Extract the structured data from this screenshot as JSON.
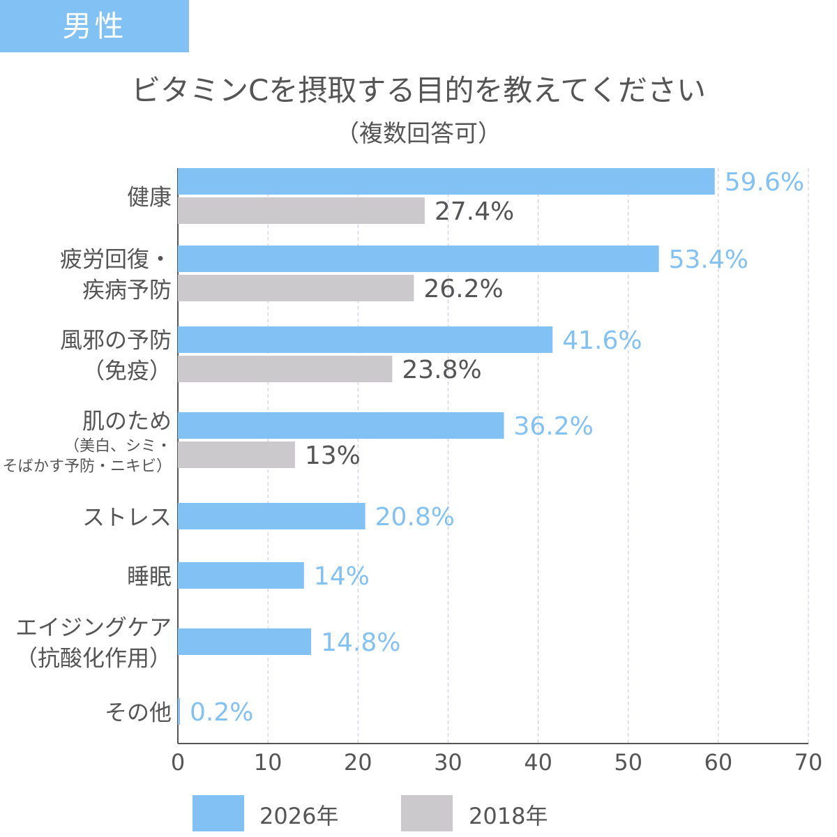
{
  "header": {
    "badge": "男性"
  },
  "chart_data": {
    "type": "bar",
    "orientation": "horizontal",
    "title": "ビタミンCを摂取する目的を教えてください",
    "subtitle": "（複数回答可）",
    "xlabel": "",
    "ylabel": "",
    "xlim": [
      0,
      70
    ],
    "x_ticks": [
      0,
      10,
      20,
      30,
      40,
      50,
      60,
      70
    ],
    "grid": "vertical dashed",
    "legend_position": "bottom",
    "categories": [
      {
        "lines": [
          "健康"
        ],
        "sublines": []
      },
      {
        "lines": [
          "疲労回復・",
          "疾病予防"
        ],
        "sublines": []
      },
      {
        "lines": [
          "風邪の予防",
          "（免疫）"
        ],
        "sublines": []
      },
      {
        "lines": [
          "肌のため"
        ],
        "sublines": [
          "（美白、シミ・",
          "そばかす予防・ニキビ）"
        ]
      },
      {
        "lines": [
          "ストレス"
        ],
        "sublines": []
      },
      {
        "lines": [
          "睡眠"
        ],
        "sublines": []
      },
      {
        "lines": [
          "エイジングケア",
          "（抗酸化作用）"
        ],
        "sublines": []
      },
      {
        "lines": [
          "その他"
        ],
        "sublines": []
      }
    ],
    "series": [
      {
        "name": "2026年",
        "color": "#82c1f3",
        "label_color": "#82c1f3",
        "values": [
          59.6,
          53.4,
          41.6,
          36.2,
          20.8,
          14,
          14.8,
          0.2
        ],
        "labels": [
          "59.6%",
          "53.4%",
          "41.6%",
          "36.2%",
          "20.8%",
          "14%",
          "14.8%",
          "0.2%"
        ]
      },
      {
        "name": "2018年",
        "color": "#ccc9cc",
        "label_color": "#555555",
        "values": [
          27.4,
          26.2,
          23.8,
          13,
          null,
          null,
          null,
          null
        ],
        "labels": [
          "27.4%",
          "26.2%",
          "23.8%",
          "13%",
          null,
          null,
          null,
          null
        ]
      }
    ]
  }
}
